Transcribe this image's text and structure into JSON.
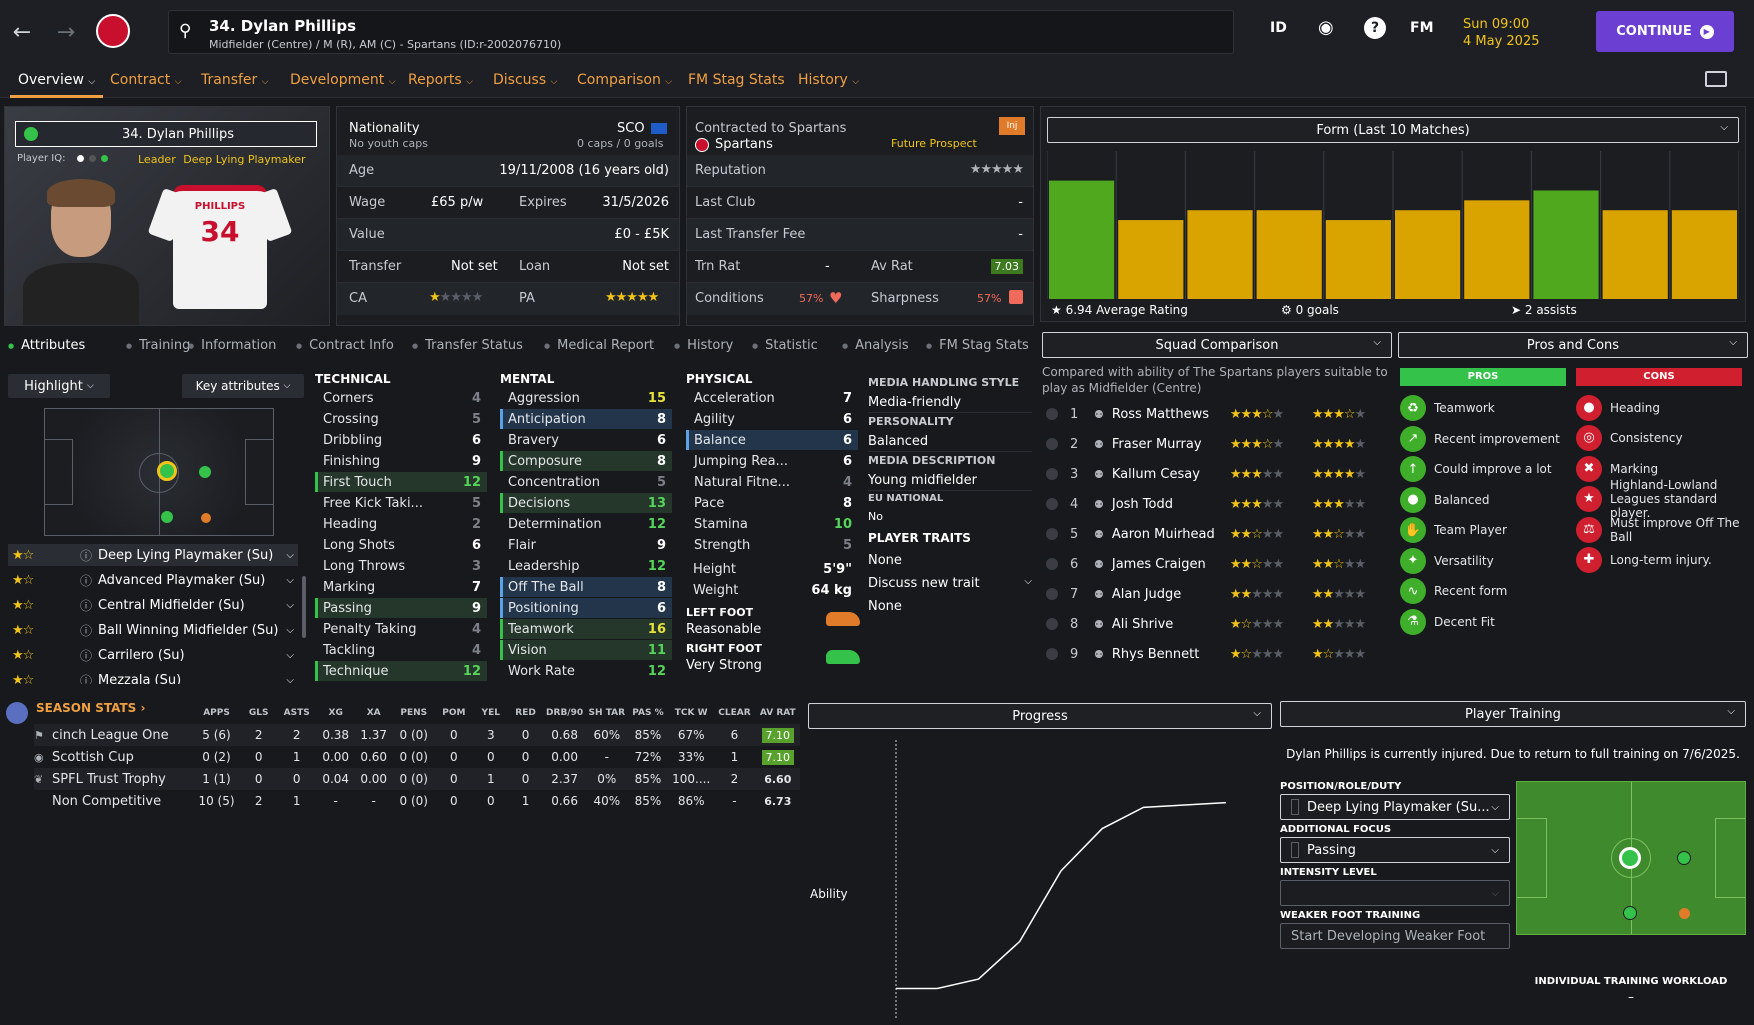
{
  "header": {
    "player_title": "34. Dylan Phillips",
    "player_subtitle": "Midfielder (Centre) / M (R), AM (C) - Spartans (ID:r-2002076710)",
    "icon_id": "ID",
    "icon_fm": "FM",
    "date_line1": "Sun 09:00",
    "date_line2": "4 May 2025",
    "continue_label": "CONTINUE"
  },
  "menu": [
    "Overview",
    "Contract",
    "Transfer",
    "Development",
    "Reports",
    "Discuss",
    "Comparison",
    "FM Stag Stats",
    "History"
  ],
  "card": {
    "name": "34. Dylan Phillips",
    "iq_label": "Player IQ:",
    "leader": "Leader",
    "role": "Deep Lying Playmaker",
    "shirt_name": "PHILLIPS",
    "shirt_number": "34"
  },
  "info": {
    "nationality_label": "Nationality",
    "nationality_sub": "No youth caps",
    "nation_code": "SCO",
    "caps": "0 caps / 0 goals",
    "age_label": "Age",
    "age_value": "19/11/2008 (16 years old)",
    "wage_label": "Wage",
    "wage_value": "£65 p/w",
    "expires_label": "Expires",
    "expires_value": "31/5/2026",
    "value_label": "Value",
    "value_value": "£0 - £5K",
    "transfer_label": "Transfer",
    "transfer_value": "Not set",
    "loan_label": "Loan",
    "loan_value": "Not set",
    "ca_label": "CA",
    "pa_label": "PA",
    "ca_stars": 1.5,
    "pa_stars": 4.5
  },
  "contract": {
    "contracted_label": "Contracted to Spartans",
    "club": "Spartans",
    "status": "Future Prospect",
    "inj_badge": "Inj",
    "reputation_label": "Reputation",
    "last_club_label": "Last Club",
    "last_club_value": "-",
    "last_fee_label": "Last Transfer Fee",
    "last_fee_value": "-",
    "trn_rat_label": "Trn Rat",
    "trn_rat_value": "-",
    "av_rat_label": "Av Rat",
    "av_rat_value": "7.03",
    "conditions_label": "Conditions",
    "conditions_value": "57%",
    "sharpness_label": "Sharpness",
    "sharpness_value": "57%"
  },
  "form": {
    "title": "Form (Last 10 Matches)",
    "average": "6.94 Average Rating",
    "goals": "0 goals",
    "assists": "2 assists",
    "bars": [
      7.2,
      6.8,
      6.9,
      6.9,
      6.8,
      6.9,
      7.0,
      7.1,
      6.9,
      6.9
    ],
    "bar_colors": [
      "#4fa81e",
      "#d9a300",
      "#d9a300",
      "#d9a300",
      "#d9a300",
      "#d9a300",
      "#d9a300",
      "#4fa81e",
      "#d9a300",
      "#d9a300"
    ]
  },
  "tabs": [
    "Attributes",
    "Training",
    "Information",
    "Contract Info",
    "Transfer Status",
    "Medical Report",
    "History",
    "Statistic",
    "Analysis",
    "FM Stag Stats"
  ],
  "controls": {
    "highlight": "Highlight",
    "key_attributes": "Key attributes"
  },
  "roles": [
    {
      "name": "Deep Lying Playmaker (Su)",
      "stars": 1.5
    },
    {
      "name": "Advanced Playmaker (Su)",
      "stars": 1.5
    },
    {
      "name": "Central Midfielder (Su)",
      "stars": 1.5
    },
    {
      "name": "Ball Winning Midfielder (Su)",
      "stars": 1.5
    },
    {
      "name": "Carrilero (Su)",
      "stars": 1.5
    },
    {
      "name": "Mezzala (Su)",
      "stars": 1.5
    }
  ],
  "technical_title": "TECHNICAL",
  "technical": [
    {
      "n": "Corners",
      "v": "4"
    },
    {
      "n": "Crossing",
      "v": "5"
    },
    {
      "n": "Dribbling",
      "v": "6"
    },
    {
      "n": "Finishing",
      "v": "9"
    },
    {
      "n": "First Touch",
      "v": "12"
    },
    {
      "n": "Free Kick Taki...",
      "v": "5"
    },
    {
      "n": "Heading",
      "v": "2"
    },
    {
      "n": "Long Shots",
      "v": "6"
    },
    {
      "n": "Long Throws",
      "v": "3"
    },
    {
      "n": "Marking",
      "v": "7"
    },
    {
      "n": "Passing",
      "v": "9"
    },
    {
      "n": "Penalty Taking",
      "v": "4"
    },
    {
      "n": "Tackling",
      "v": "4"
    },
    {
      "n": "Technique",
      "v": "12"
    }
  ],
  "mental_title": "MENTAL",
  "mental": [
    {
      "n": "Aggression",
      "v": "15"
    },
    {
      "n": "Anticipation",
      "v": "8"
    },
    {
      "n": "Bravery",
      "v": "6"
    },
    {
      "n": "Composure",
      "v": "8"
    },
    {
      "n": "Concentration",
      "v": "5"
    },
    {
      "n": "Decisions",
      "v": "13"
    },
    {
      "n": "Determination",
      "v": "12"
    },
    {
      "n": "Flair",
      "v": "9"
    },
    {
      "n": "Leadership",
      "v": "12"
    },
    {
      "n": "Off The Ball",
      "v": "8"
    },
    {
      "n": "Positioning",
      "v": "6"
    },
    {
      "n": "Teamwork",
      "v": "16"
    },
    {
      "n": "Vision",
      "v": "11"
    },
    {
      "n": "Work Rate",
      "v": "12"
    }
  ],
  "physical_title": "PHYSICAL",
  "physical": [
    {
      "n": "Acceleration",
      "v": "7"
    },
    {
      "n": "Agility",
      "v": "6"
    },
    {
      "n": "Balance",
      "v": "6"
    },
    {
      "n": "Jumping Rea...",
      "v": "6"
    },
    {
      "n": "Natural Fitne...",
      "v": "4"
    },
    {
      "n": "Pace",
      "v": "8"
    },
    {
      "n": "Stamina",
      "v": "10"
    },
    {
      "n": "Strength",
      "v": "5"
    }
  ],
  "body": {
    "height_label": "Height",
    "height": "5'9\"",
    "weight_label": "Weight",
    "weight": "64 kg",
    "left_foot_label": "LEFT FOOT",
    "left_foot": "Reasonable",
    "right_foot_label": "RIGHT FOOT",
    "right_foot": "Very Strong"
  },
  "media": {
    "style_label": "MEDIA HANDLING STYLE",
    "style": "Media-friendly",
    "personality_label": "PERSONALITY",
    "personality": "Balanced",
    "desc_label": "MEDIA DESCRIPTION",
    "desc": "Young midfielder",
    "eu_label": "EU NATIONAL",
    "eu": "No",
    "traits_label": "PLAYER TRAITS",
    "traits": "None",
    "discuss": "Discuss new trait",
    "discuss_value": "None"
  },
  "squad": {
    "title": "Squad Comparison",
    "desc": "Compared with ability of The Spartans players suitable to play as Midfielder (Centre)",
    "players": [
      {
        "rank": "1",
        "name": "Ross Matthews",
        "ca": 3.5,
        "pa": 3.5
      },
      {
        "rank": "2",
        "name": "Fraser Murray",
        "ca": 3.5,
        "pa": 4
      },
      {
        "rank": "3",
        "name": "Kallum Cesay",
        "ca": 3,
        "pa": 4
      },
      {
        "rank": "4",
        "name": "Josh Todd",
        "ca": 3,
        "pa": 3
      },
      {
        "rank": "5",
        "name": "Aaron Muirhead",
        "ca": 2.5,
        "pa": 2.5
      },
      {
        "rank": "6",
        "name": "James Craigen",
        "ca": 2.5,
        "pa": 2.5
      },
      {
        "rank": "7",
        "name": "Alan Judge",
        "ca": 2,
        "pa": 2
      },
      {
        "rank": "8",
        "name": "Ali Shrive",
        "ca": 1.5,
        "pa": 2
      },
      {
        "rank": "9",
        "name": "Rhys Bennett",
        "ca": 1.5,
        "pa": 1.5
      }
    ]
  },
  "proscons": {
    "title": "Pros and Cons",
    "pros_label": "PROS",
    "cons_label": "CONS",
    "pros": [
      "Teamwork",
      "Recent improvement",
      "Could improve a lot",
      "Balanced",
      "Team Player",
      "Versatility",
      "Recent form",
      "Decent Fit"
    ],
    "cons": [
      "Heading",
      "Consistency",
      "Marking",
      "Highland-Lowland Leagues standard player.",
      "Must improve Off The Ball",
      "Long-term injury."
    ]
  },
  "season": {
    "title": "SEASON STATS",
    "headers": [
      "APPS",
      "GLS",
      "ASTS",
      "XG",
      "XA",
      "PENS",
      "POM",
      "YEL",
      "RED",
      "DRB/90",
      "SH TAR",
      "PAS %",
      "TCK W",
      "CLEAR",
      "AV RAT"
    ],
    "rows": [
      {
        "comp": "cinch League One",
        "cells": [
          "5 (6)",
          "2",
          "2",
          "0.38",
          "1.37",
          "0 (0)",
          "0",
          "3",
          "0",
          "0.68",
          "60%",
          "85%",
          "67%",
          "6",
          "7.10"
        ],
        "hl": true
      },
      {
        "comp": "Scottish Cup",
        "cells": [
          "0 (2)",
          "0",
          "1",
          "0.00",
          "0.60",
          "0 (0)",
          "0",
          "0",
          "0",
          "0.00",
          "-",
          "72%",
          "33%",
          "1",
          "7.10"
        ],
        "hl": true
      },
      {
        "comp": "SPFL Trust Trophy",
        "cells": [
          "1 (1)",
          "0",
          "0",
          "0.04",
          "0.00",
          "0 (0)",
          "0",
          "1",
          "0",
          "2.37",
          "0%",
          "85%",
          "100....",
          "2",
          "6.60"
        ],
        "hl": false
      },
      {
        "comp": "Non Competitive",
        "cells": [
          "10 (5)",
          "2",
          "1",
          "-",
          "-",
          "0 (0)",
          "0",
          "0",
          "1",
          "0.66",
          "40%",
          "85%",
          "86%",
          "-",
          "6.73"
        ],
        "hl": false
      }
    ]
  },
  "progress": {
    "title": "Progress",
    "ylabel": "Ability"
  },
  "chart_data": {
    "type": "line",
    "x": [
      0,
      1,
      2,
      3,
      4,
      5,
      6,
      7,
      8
    ],
    "values": [
      0.1,
      0.1,
      0.14,
      0.3,
      0.6,
      0.78,
      0.87,
      0.88,
      0.89
    ],
    "ylabel": "Ability"
  },
  "training": {
    "title": "Player Training",
    "injury_msg": "Dylan Phillips is currently injured. Due to return to full training on 7/6/2025.",
    "pos_label": "POSITION/ROLE/DUTY",
    "pos_value": "Deep Lying Playmaker (Su...",
    "focus_label": "ADDITIONAL FOCUS",
    "focus_value": "Passing",
    "intensity_label": "INTENSITY LEVEL",
    "weak_label": "WEAKER FOOT TRAINING",
    "weak_value": "Start Developing Weaker Foot",
    "workload_label": "INDIVIDUAL TRAINING WORKLOAD",
    "workload_value": "–"
  }
}
